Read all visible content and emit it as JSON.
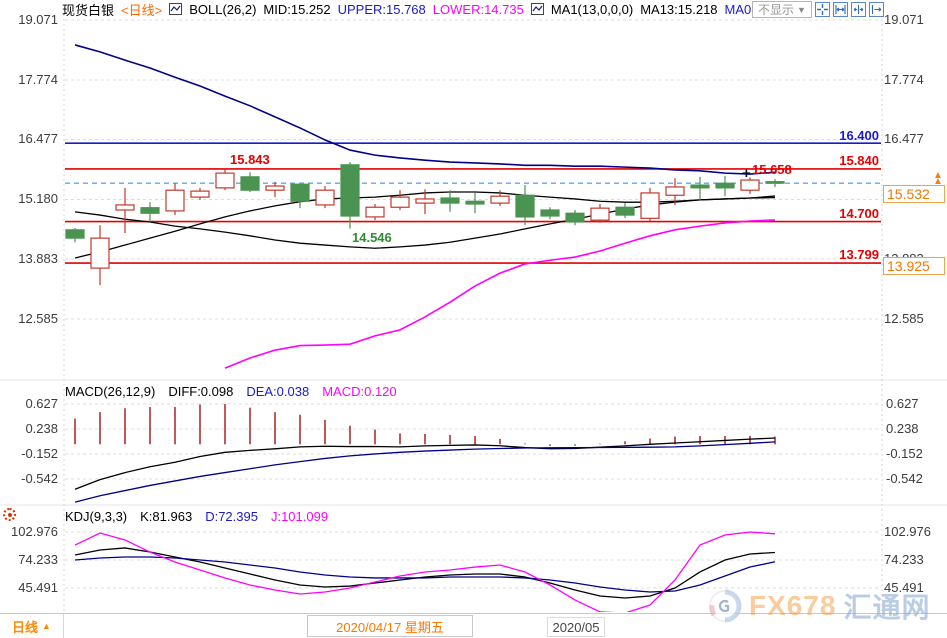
{
  "header": {
    "symbol": "现货白银",
    "period": "<日线>",
    "boll": {
      "name": "BOLL(26,2)",
      "mid": "MID:15.252",
      "upper": "UPPER:15.768",
      "lower": "LOWER:14.735"
    },
    "ma": {
      "name": "MA1(13,0,0,0)",
      "ma13": "MA13:15.218",
      "ma0": "MA0"
    },
    "dropdown_label": "不显示"
  },
  "ui": {
    "dropdown_arrow": "▼",
    "up_arrow": "▲",
    "cursor_mark": "+"
  },
  "macd_pane": {
    "title": "MACD(26,12,9)",
    "diff_label": "DIFF:0.098",
    "dea_label": "DEA:0.038",
    "macd_label": "MACD:0.120"
  },
  "kdj_pane": {
    "title": "KDJ(9,3,3)",
    "k_label": "K:81.963",
    "d_label": "D:72.395",
    "j_label": "J:101.099"
  },
  "bottom_bar": {
    "period_label": "日线",
    "date_label": "2020/04/17 星期五",
    "month_label": "2020/05"
  },
  "watermark": {
    "brand": "FX678",
    "suffix": "汇通网"
  },
  "colors": {
    "accent_orange": "#f07800",
    "label_red": "#e60000",
    "label_blue": "#1a1acc",
    "label_green": "#2e8b2e"
  },
  "chart_data": [
    {
      "type": "candlestick",
      "title": "现货白银 日线 BOLL(26,2) MA13",
      "ytick_labels": [
        "19.071",
        "17.774",
        "16.477",
        "15.180",
        "13.883",
        "12.585"
      ],
      "candle_up_color": "#c0392b",
      "candle_down_color": "#4a9350",
      "candles": [
        [
          14.52,
          14.56,
          14.25,
          14.34
        ],
        [
          13.69,
          14.62,
          13.32,
          14.34
        ],
        [
          14.95,
          15.43,
          14.45,
          15.06
        ],
        [
          15.0,
          15.12,
          14.69,
          14.88
        ],
        [
          14.93,
          15.53,
          14.84,
          15.38
        ],
        [
          15.23,
          15.43,
          15.17,
          15.36
        ],
        [
          15.43,
          15.843,
          15.38,
          15.75
        ],
        [
          15.67,
          15.77,
          15.34,
          15.38
        ],
        [
          15.38,
          15.56,
          15.23,
          15.47
        ],
        [
          15.51,
          15.53,
          14.99,
          15.14
        ],
        [
          15.06,
          15.47,
          14.99,
          15.38
        ],
        [
          15.93,
          15.99,
          14.546,
          14.82
        ],
        [
          14.8,
          15.08,
          14.73,
          15.01
        ],
        [
          15.01,
          15.38,
          14.95,
          15.23
        ],
        [
          15.1,
          15.4,
          14.86,
          15.19
        ],
        [
          15.21,
          15.38,
          14.91,
          15.1
        ],
        [
          15.14,
          15.32,
          14.88,
          15.08
        ],
        [
          15.1,
          15.38,
          15.04,
          15.25
        ],
        [
          15.27,
          15.49,
          14.62,
          14.8
        ],
        [
          14.95,
          15.01,
          14.75,
          14.82
        ],
        [
          14.88,
          14.95,
          14.62,
          14.69
        ],
        [
          14.73,
          15.08,
          14.67,
          14.99
        ],
        [
          15.01,
          15.1,
          14.78,
          14.84
        ],
        [
          14.77,
          15.43,
          14.71,
          15.32
        ],
        [
          15.27,
          15.64,
          15.06,
          15.45
        ],
        [
          15.49,
          15.67,
          15.17,
          15.43
        ],
        [
          15.53,
          15.69,
          15.25,
          15.43
        ],
        [
          15.38,
          15.658,
          15.3,
          15.6
        ],
        [
          15.565,
          15.62,
          15.45,
          15.532
        ]
      ],
      "series": [
        {
          "name": "BOLL-UPPER",
          "color": "#00008b",
          "values": [
            18.53,
            18.38,
            18.2,
            18.03,
            17.83,
            17.64,
            17.42,
            17.21,
            16.97,
            16.73,
            16.47,
            16.25,
            16.14,
            16.08,
            16.03,
            15.99,
            15.97,
            15.95,
            15.92,
            15.92,
            15.9,
            15.9,
            15.88,
            15.86,
            15.82,
            15.8,
            15.75,
            15.73,
            15.768
          ]
        },
        {
          "name": "BOLL-MID",
          "color": "#000000",
          "values": [
            14.91,
            14.84,
            14.75,
            14.69,
            14.6,
            14.54,
            14.47,
            14.39,
            14.3,
            14.23,
            14.19,
            14.15,
            14.12,
            14.15,
            14.19,
            14.25,
            14.34,
            14.43,
            14.54,
            14.65,
            14.75,
            14.86,
            14.97,
            15.06,
            15.12,
            15.17,
            15.19,
            15.21,
            15.252
          ]
        },
        {
          "name": "MA13",
          "color": "#000000",
          "values": [
            13.91,
            14.04,
            14.19,
            14.34,
            14.49,
            14.65,
            14.8,
            14.93,
            15.04,
            15.13,
            15.19,
            15.21,
            15.23,
            15.27,
            15.32,
            15.34,
            15.34,
            15.32,
            15.27,
            15.23,
            15.19,
            15.14,
            15.12,
            15.12,
            15.14,
            15.17,
            15.19,
            15.21,
            15.218
          ]
        },
        {
          "name": "BOLL-LOWER",
          "color": "#ff00ff",
          "values": [
            null,
            null,
            null,
            null,
            null,
            null,
            11.52,
            11.74,
            11.91,
            12.01,
            12.02,
            12.04,
            12.22,
            12.35,
            12.63,
            12.95,
            13.3,
            13.58,
            13.78,
            13.86,
            13.93,
            14.06,
            14.23,
            14.39,
            14.52,
            14.6,
            14.67,
            14.71,
            14.735
          ]
        }
      ],
      "hlines": [
        {
          "value": 16.4,
          "label": "16.400",
          "color": "#1a1acc"
        },
        {
          "value": 15.84,
          "label": "15.840",
          "color": "#e60000"
        },
        {
          "value": 14.7,
          "label": "14.700",
          "color": "#e60000"
        },
        {
          "value": 13.799,
          "label": "13.799",
          "color": "#e60000"
        }
      ],
      "last_price": 15.532,
      "last_price_label": "15.532",
      "ref_label": "13.925",
      "annotations": [
        {
          "text": "15.843",
          "index": 6,
          "at": "high",
          "color": "#e60000"
        },
        {
          "text": "14.546",
          "index": 11,
          "at": "low",
          "color": "#2e8b2e"
        },
        {
          "text": "15.658",
          "index": 27,
          "at": "high",
          "color": "#e60000"
        }
      ]
    },
    {
      "type": "macd",
      "ytick_labels": [
        "0.627",
        "0.238",
        "-0.152",
        "-0.542"
      ],
      "hist_pos_color": "#b03030",
      "hist_neg_color": "#2f8f2f",
      "histogram": [
        0.4,
        0.5,
        0.56,
        0.58,
        0.58,
        0.62,
        0.627,
        0.57,
        0.5,
        0.46,
        0.38,
        0.29,
        0.23,
        0.17,
        0.16,
        0.146,
        0.13,
        0.084,
        0.014,
        -0.026,
        -0.024,
        0.01,
        0.046,
        0.09,
        0.12,
        0.13,
        0.13,
        0.13,
        0.12
      ],
      "series": [
        {
          "name": "DIFF",
          "color": "#000000",
          "values": [
            -0.7,
            -0.55,
            -0.44,
            -0.35,
            -0.28,
            -0.19,
            -0.125,
            -0.095,
            -0.07,
            -0.04,
            -0.03,
            -0.035,
            -0.035,
            -0.04,
            -0.025,
            -0.017,
            -0.01,
            -0.023,
            -0.051,
            -0.068,
            -0.065,
            -0.045,
            -0.025,
            0.0,
            0.02,
            0.04,
            0.06,
            0.08,
            0.098
          ]
        },
        {
          "name": "DEA",
          "color": "#00008b",
          "values": [
            -0.9,
            -0.8,
            -0.72,
            -0.64,
            -0.57,
            -0.5,
            -0.44,
            -0.38,
            -0.32,
            -0.27,
            -0.22,
            -0.18,
            -0.15,
            -0.125,
            -0.105,
            -0.09,
            -0.075,
            -0.065,
            -0.058,
            -0.055,
            -0.053,
            -0.05,
            -0.048,
            -0.045,
            -0.04,
            -0.025,
            -0.005,
            0.015,
            0.038
          ]
        }
      ]
    },
    {
      "type": "kdj",
      "ytick_labels": [
        "102.976",
        "74.233",
        "45.491"
      ],
      "series": [
        {
          "name": "K",
          "color": "#000000",
          "values": [
            79.4,
            84.5,
            86.6,
            82.4,
            77.3,
            72.2,
            66.0,
            59.9,
            53.7,
            48.6,
            46.5,
            47.5,
            50.6,
            53.7,
            56.8,
            58.8,
            59.9,
            59.9,
            56.8,
            50.6,
            43.4,
            37.3,
            35.2,
            37.3,
            45.5,
            62.0,
            74.2,
            80.4,
            81.963
          ]
        },
        {
          "name": "D",
          "color": "#00008b",
          "values": [
            74.2,
            76.3,
            77.3,
            77.3,
            76.3,
            74.2,
            72.2,
            69.1,
            66.0,
            61.9,
            58.8,
            56.8,
            55.8,
            55.8,
            55.8,
            56.8,
            56.8,
            56.8,
            55.8,
            53.7,
            50.6,
            46.5,
            43.4,
            41.4,
            42.4,
            48.6,
            57.8,
            67.0,
            72.395
          ]
        },
        {
          "name": "J",
          "color": "#ff00ff",
          "values": [
            89.6,
            101.9,
            94.8,
            82.4,
            72.2,
            64.0,
            55.8,
            48.6,
            43.4,
            39.3,
            41.4,
            45.5,
            51.6,
            57.8,
            61.9,
            64.0,
            67.0,
            69.1,
            61.9,
            48.6,
            33.2,
            20.9,
            19.8,
            28.0,
            53.7,
            89.6,
            99.9,
            103.0,
            101.099
          ]
        }
      ]
    }
  ]
}
